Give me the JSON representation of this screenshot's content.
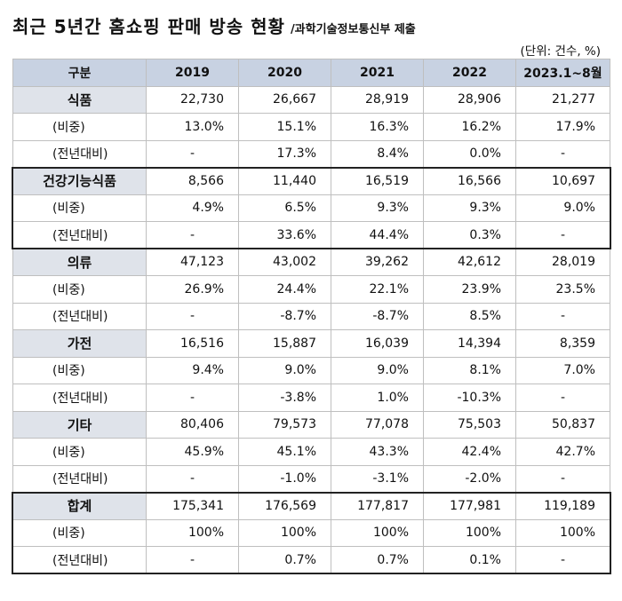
{
  "title": "최근 5년간 홈쇼핑 판매 방송 현황",
  "subtitle": "/과학기술정보통신부 제출",
  "unit": "(단위: 건수, %)",
  "headers": [
    "구분",
    "2019",
    "2020",
    "2021",
    "2022",
    "2023.1~8월"
  ],
  "sub_labels": {
    "share": "(비중)",
    "yoy": "(전년대비)"
  },
  "groups": [
    {
      "name": "식품",
      "counts": [
        "22,730",
        "26,667",
        "28,919",
        "28,906",
        "21,277"
      ],
      "share": [
        "13.0%",
        "15.1%",
        "16.3%",
        "16.2%",
        "17.9%"
      ],
      "yoy": [
        "-",
        "17.3%",
        "8.4%",
        "0.0%",
        "-"
      ]
    },
    {
      "name": "건강기능식품",
      "counts": [
        "8,566",
        "11,440",
        "16,519",
        "16,566",
        "10,697"
      ],
      "share": [
        "4.9%",
        "6.5%",
        "9.3%",
        "9.3%",
        "9.0%"
      ],
      "yoy": [
        "-",
        "33.6%",
        "44.4%",
        "0.3%",
        "-"
      ]
    },
    {
      "name": "의류",
      "counts": [
        "47,123",
        "43,002",
        "39,262",
        "42,612",
        "28,019"
      ],
      "share": [
        "26.9%",
        "24.4%",
        "22.1%",
        "23.9%",
        "23.5%"
      ],
      "yoy": [
        "-",
        "-8.7%",
        "-8.7%",
        "8.5%",
        "-"
      ]
    },
    {
      "name": "가전",
      "counts": [
        "16,516",
        "15,887",
        "16,039",
        "14,394",
        "8,359"
      ],
      "share": [
        "9.4%",
        "9.0%",
        "9.0%",
        "8.1%",
        "7.0%"
      ],
      "yoy": [
        "-",
        "-3.8%",
        "1.0%",
        "-10.3%",
        "-"
      ]
    },
    {
      "name": "기타",
      "counts": [
        "80,406",
        "79,573",
        "77,078",
        "75,503",
        "50,837"
      ],
      "share": [
        "45.9%",
        "45.1%",
        "43.3%",
        "42.4%",
        "42.7%"
      ],
      "yoy": [
        "-",
        "-1.0%",
        "-3.1%",
        "-2.0%",
        "-"
      ]
    },
    {
      "name": "합계",
      "counts": [
        "175,341",
        "176,569",
        "177,817",
        "177,981",
        "119,189"
      ],
      "share": [
        "100%",
        "100%",
        "100%",
        "100%",
        "100%"
      ],
      "yoy": [
        "-",
        "0.7%",
        "0.7%",
        "0.1%",
        "-"
      ]
    }
  ]
}
